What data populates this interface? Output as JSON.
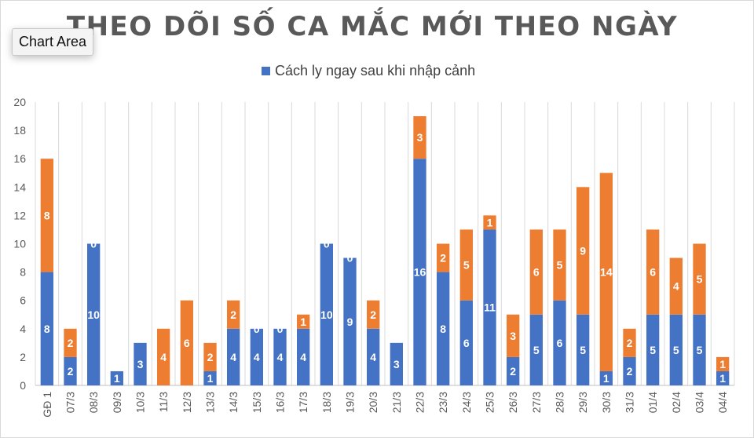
{
  "tooltip_label": "Chart Area",
  "chart_data": {
    "type": "bar",
    "stacked": true,
    "title": "THEO DÕI SỐ CA MẮC MỚI THEO NGÀY",
    "legend": {
      "position": "top",
      "visible_entries": [
        "Cách ly ngay sau khi nhập cảnh"
      ]
    },
    "grid": {
      "vertical": true,
      "horizontal": false
    },
    "colors": [
      "#4472c4",
      "#ed7d31"
    ],
    "ylim": [
      0,
      20
    ],
    "yticks": [
      0,
      2,
      4,
      6,
      8,
      10,
      12,
      14,
      16,
      18,
      20
    ],
    "categories": [
      "GĐ 1",
      "07/3",
      "08/3",
      "09/3",
      "10/3",
      "11/3",
      "12/3",
      "13/3",
      "14/3",
      "15/3",
      "16/3",
      "17/3",
      "18/3",
      "19/3",
      "20/3",
      "21/3",
      "22/3",
      "23/3",
      "24/3",
      "25/3",
      "26/3",
      "27/3",
      "28/3",
      "29/3",
      "30/3",
      "31/3",
      "01/4",
      "02/4",
      "03/4",
      "04/4"
    ],
    "series": [
      {
        "name": "Cách ly ngay sau khi nhập cảnh",
        "values": [
          8,
          2,
          10,
          1,
          3,
          0,
          0,
          1,
          4,
          4,
          4,
          4,
          10,
          9,
          4,
          3,
          16,
          8,
          6,
          11,
          2,
          5,
          6,
          5,
          1,
          2,
          5,
          5,
          5,
          1
        ]
      },
      {
        "values": [
          8,
          2,
          0,
          0,
          0,
          4,
          6,
          2,
          2,
          0,
          0,
          1,
          0,
          0,
          2,
          0,
          3,
          2,
          5,
          1,
          3,
          6,
          5,
          9,
          14,
          2,
          6,
          4,
          5,
          1
        ]
      }
    ],
    "hidden_labels": {
      "s0": [
        "11/3",
        "12/3"
      ],
      "s1": [
        "09/3",
        "10/3",
        "21/3"
      ]
    }
  }
}
